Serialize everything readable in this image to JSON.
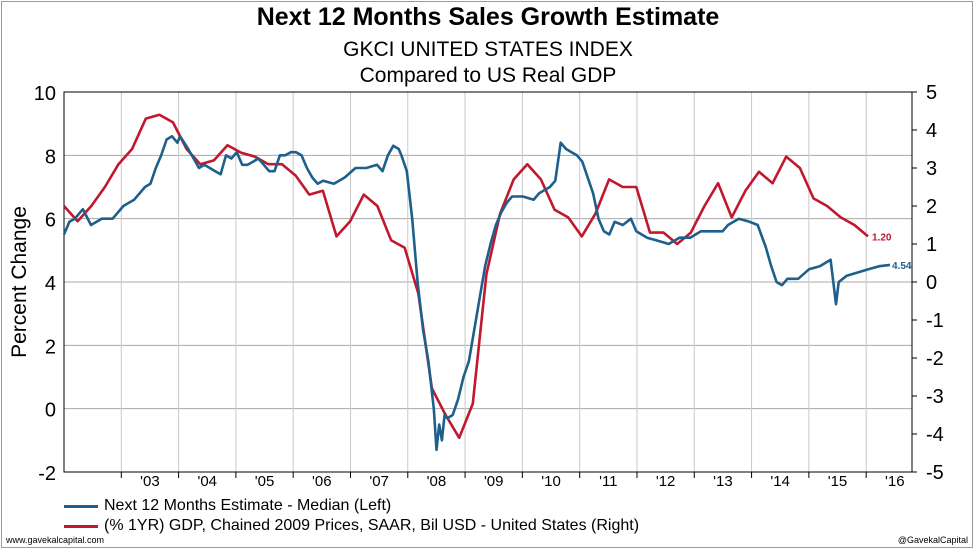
{
  "title": "Next 12 Months Sales Growth Estimate",
  "subtitle1": "GKCI UNITED STATES INDEX",
  "subtitle2": "Compared to US Real GDP",
  "footer_left": "www.gavekalcapital.com",
  "footer_right": "@GavekalCapital",
  "chart_data": {
    "type": "line",
    "ylabel": "Percent Change",
    "ylim_left": [
      -2,
      10
    ],
    "ylim_right": [
      -5,
      5
    ],
    "yticks_left": [
      10,
      8,
      6,
      4,
      2,
      0,
      -2
    ],
    "yticks_right": [
      5,
      4,
      3,
      2,
      1,
      0,
      -1,
      -2,
      -3,
      -4,
      -5
    ],
    "xlim": [
      2002.0,
      2016.8
    ],
    "xticks": [
      {
        "label": "'03",
        "x": 2003.5
      },
      {
        "label": "'04",
        "x": 2004.5
      },
      {
        "label": "'05",
        "x": 2005.5
      },
      {
        "label": "'06",
        "x": 2006.5
      },
      {
        "label": "'07",
        "x": 2007.5
      },
      {
        "label": "'08",
        "x": 2008.5
      },
      {
        "label": "'09",
        "x": 2009.5
      },
      {
        "label": "'10",
        "x": 2010.5
      },
      {
        "label": "'11",
        "x": 2011.5
      },
      {
        "label": "'12",
        "x": 2012.5
      },
      {
        "label": "'13",
        "x": 2013.5
      },
      {
        "label": "'14",
        "x": 2014.5
      },
      {
        "label": "'15",
        "x": 2015.5
      },
      {
        "label": "'16",
        "x": 2016.5
      }
    ],
    "grid": true,
    "legend_position": "bottom",
    "series": [
      {
        "name": "Next 12 Months Estimate - Median  (Left)",
        "axis": "left",
        "color": "#1f5f8b",
        "end_label": "4.54",
        "points": [
          [
            2002.0,
            5.5
          ],
          [
            2002.1,
            5.9
          ],
          [
            2002.2,
            6.0
          ],
          [
            2002.35,
            6.3
          ],
          [
            2002.5,
            5.8
          ],
          [
            2002.7,
            6.0
          ],
          [
            2002.9,
            6.0
          ],
          [
            2003.1,
            6.4
          ],
          [
            2003.3,
            6.6
          ],
          [
            2003.5,
            7.0
          ],
          [
            2003.6,
            7.1
          ],
          [
            2003.7,
            7.6
          ],
          [
            2003.8,
            8.0
          ],
          [
            2003.9,
            8.5
          ],
          [
            2004.0,
            8.6
          ],
          [
            2004.1,
            8.4
          ],
          [
            2004.15,
            8.6
          ],
          [
            2004.3,
            8.2
          ],
          [
            2004.4,
            7.9
          ],
          [
            2004.5,
            7.6
          ],
          [
            2004.6,
            7.7
          ],
          [
            2004.8,
            7.5
          ],
          [
            2004.9,
            7.4
          ],
          [
            2005.0,
            8.0
          ],
          [
            2005.1,
            7.9
          ],
          [
            2005.2,
            8.1
          ],
          [
            2005.3,
            7.7
          ],
          [
            2005.4,
            7.7
          ],
          [
            2005.5,
            7.8
          ],
          [
            2005.6,
            7.9
          ],
          [
            2005.7,
            7.7
          ],
          [
            2005.8,
            7.5
          ],
          [
            2005.9,
            7.5
          ],
          [
            2006.0,
            8.0
          ],
          [
            2006.1,
            8.0
          ],
          [
            2006.2,
            8.1
          ],
          [
            2006.3,
            8.1
          ],
          [
            2006.4,
            8.0
          ],
          [
            2006.5,
            7.6
          ],
          [
            2006.6,
            7.3
          ],
          [
            2006.7,
            7.1
          ],
          [
            2006.8,
            7.2
          ],
          [
            2007.0,
            7.1
          ],
          [
            2007.2,
            7.3
          ],
          [
            2007.4,
            7.6
          ],
          [
            2007.6,
            7.6
          ],
          [
            2007.8,
            7.7
          ],
          [
            2007.9,
            7.5
          ],
          [
            2008.0,
            8.0
          ],
          [
            2008.1,
            8.3
          ],
          [
            2008.2,
            8.2
          ],
          [
            2008.25,
            8.0
          ],
          [
            2008.35,
            7.5
          ],
          [
            2008.45,
            6.0
          ],
          [
            2008.55,
            4.0
          ],
          [
            2008.65,
            2.5
          ],
          [
            2008.75,
            1.5
          ],
          [
            2008.85,
            0.0
          ],
          [
            2008.9,
            -1.3
          ],
          [
            2008.95,
            -0.5
          ],
          [
            2009.0,
            -1.0
          ],
          [
            2009.05,
            -0.2
          ],
          [
            2009.1,
            -0.3
          ],
          [
            2009.2,
            -0.2
          ],
          [
            2009.3,
            0.3
          ],
          [
            2009.4,
            1.0
          ],
          [
            2009.5,
            1.5
          ],
          [
            2009.6,
            2.5
          ],
          [
            2009.7,
            3.5
          ],
          [
            2009.8,
            4.5
          ],
          [
            2009.9,
            5.2
          ],
          [
            2010.0,
            5.8
          ],
          [
            2010.1,
            6.2
          ],
          [
            2010.2,
            6.5
          ],
          [
            2010.3,
            6.7
          ],
          [
            2010.5,
            6.7
          ],
          [
            2010.7,
            6.6
          ],
          [
            2010.8,
            6.8
          ],
          [
            2011.0,
            7.0
          ],
          [
            2011.1,
            7.2
          ],
          [
            2011.2,
            8.4
          ],
          [
            2011.3,
            8.2
          ],
          [
            2011.4,
            8.1
          ],
          [
            2011.5,
            8.0
          ],
          [
            2011.6,
            7.8
          ],
          [
            2011.7,
            7.3
          ],
          [
            2011.8,
            6.8
          ],
          [
            2011.9,
            6.0
          ],
          [
            2012.0,
            5.6
          ],
          [
            2012.1,
            5.5
          ],
          [
            2012.2,
            5.9
          ],
          [
            2012.35,
            5.8
          ],
          [
            2012.5,
            6.0
          ],
          [
            2012.6,
            5.6
          ],
          [
            2012.8,
            5.4
          ],
          [
            2013.0,
            5.3
          ],
          [
            2013.2,
            5.2
          ],
          [
            2013.4,
            5.4
          ],
          [
            2013.6,
            5.4
          ],
          [
            2013.8,
            5.6
          ],
          [
            2014.0,
            5.6
          ],
          [
            2014.2,
            5.6
          ],
          [
            2014.3,
            5.8
          ],
          [
            2014.5,
            6.0
          ],
          [
            2014.7,
            5.9
          ],
          [
            2014.85,
            5.8
          ],
          [
            2015.0,
            5.1
          ],
          [
            2015.1,
            4.5
          ],
          [
            2015.2,
            4.0
          ],
          [
            2015.3,
            3.9
          ],
          [
            2015.4,
            4.1
          ],
          [
            2015.6,
            4.1
          ],
          [
            2015.8,
            4.4
          ],
          [
            2016.0,
            4.5
          ],
          [
            2016.2,
            4.7
          ],
          [
            2016.25,
            4.0
          ],
          [
            2016.3,
            3.3
          ],
          [
            2016.35,
            4.0
          ],
          [
            2016.5,
            4.2
          ],
          [
            2016.7,
            4.3
          ],
          [
            2016.9,
            4.4
          ],
          [
            2017.1,
            4.5
          ],
          [
            2017.3,
            4.54
          ]
        ]
      },
      {
        "name": "(% 1YR) GDP, Chained 2009 Prices, SAAR, Bil USD - United States  (Right)",
        "axis": "right",
        "color": "#c0182f",
        "end_label": "1.20",
        "points": [
          [
            2002.0,
            2.0
          ],
          [
            2002.25,
            1.6
          ],
          [
            2002.5,
            2.0
          ],
          [
            2002.75,
            2.5
          ],
          [
            2003.0,
            3.1
          ],
          [
            2003.25,
            3.5
          ],
          [
            2003.5,
            4.3
          ],
          [
            2003.75,
            4.4
          ],
          [
            2004.0,
            4.2
          ],
          [
            2004.25,
            3.5
          ],
          [
            2004.5,
            3.1
          ],
          [
            2004.75,
            3.2
          ],
          [
            2005.0,
            3.6
          ],
          [
            2005.25,
            3.4
          ],
          [
            2005.5,
            3.3
          ],
          [
            2005.75,
            3.1
          ],
          [
            2006.0,
            3.1
          ],
          [
            2006.25,
            2.8
          ],
          [
            2006.5,
            2.3
          ],
          [
            2006.75,
            2.4
          ],
          [
            2007.0,
            1.2
          ],
          [
            2007.25,
            1.6
          ],
          [
            2007.5,
            2.3
          ],
          [
            2007.75,
            2.0
          ],
          [
            2008.0,
            1.1
          ],
          [
            2008.25,
            0.9
          ],
          [
            2008.5,
            -0.3
          ],
          [
            2008.75,
            -2.8
          ],
          [
            2009.0,
            -3.5
          ],
          [
            2009.25,
            -4.1
          ],
          [
            2009.5,
            -3.2
          ],
          [
            2009.75,
            0.2
          ],
          [
            2010.0,
            1.8
          ],
          [
            2010.25,
            2.7
          ],
          [
            2010.5,
            3.1
          ],
          [
            2010.75,
            2.7
          ],
          [
            2011.0,
            1.9
          ],
          [
            2011.25,
            1.7
          ],
          [
            2011.5,
            1.2
          ],
          [
            2011.75,
            1.8
          ],
          [
            2012.0,
            2.7
          ],
          [
            2012.25,
            2.5
          ],
          [
            2012.5,
            2.5
          ],
          [
            2012.75,
            1.3
          ],
          [
            2013.0,
            1.3
          ],
          [
            2013.25,
            1.0
          ],
          [
            2013.5,
            1.3
          ],
          [
            2013.75,
            2.0
          ],
          [
            2014.0,
            2.6
          ],
          [
            2014.25,
            1.7
          ],
          [
            2014.5,
            2.4
          ],
          [
            2014.75,
            2.9
          ],
          [
            2015.0,
            2.6
          ],
          [
            2015.25,
            3.3
          ],
          [
            2015.5,
            3.0
          ],
          [
            2015.75,
            2.2
          ],
          [
            2016.0,
            2.0
          ],
          [
            2016.25,
            1.7
          ],
          [
            2016.5,
            1.5
          ],
          [
            2016.75,
            1.2
          ]
        ]
      }
    ]
  }
}
